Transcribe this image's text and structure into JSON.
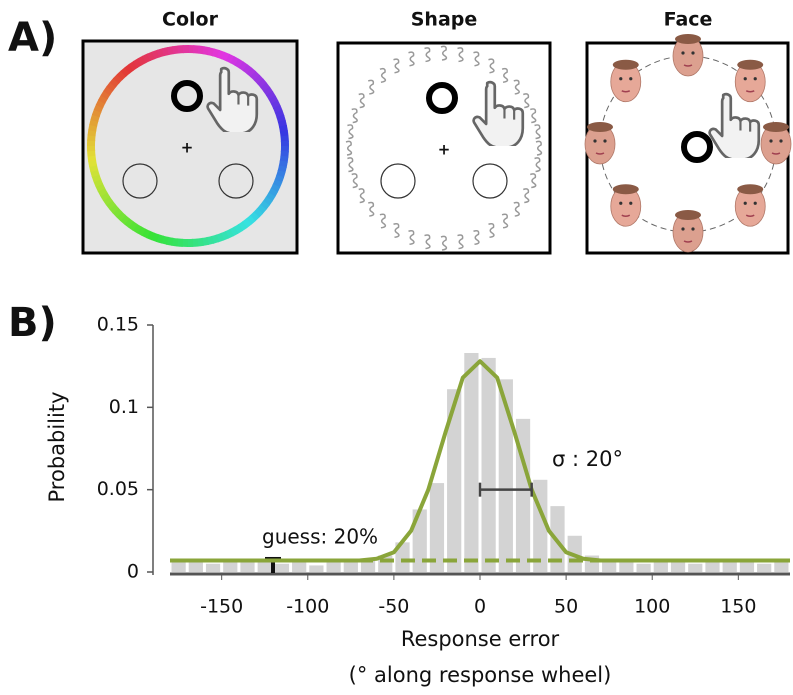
{
  "panel_a": {
    "label": "A)",
    "panels": [
      {
        "title": "Color",
        "center": "+"
      },
      {
        "title": "Shape",
        "center": "+"
      },
      {
        "title": "Face"
      }
    ]
  },
  "chart_data": {
    "type": "histogram",
    "label": "B)",
    "ylabel": "Probability",
    "xlabel": "Response error",
    "xlabel2": "(° along response wheel)",
    "bins": [
      -180,
      -170,
      -160,
      -150,
      -140,
      -130,
      -120,
      -110,
      -100,
      -90,
      -80,
      -70,
      -60,
      -50,
      -40,
      -30,
      -20,
      -10,
      0,
      10,
      20,
      30,
      40,
      50,
      60,
      70,
      80,
      90,
      100,
      110,
      120,
      130,
      140,
      150,
      160,
      170,
      180
    ],
    "values": [
      0.006,
      0.007,
      0.005,
      0.006,
      0.006,
      0.007,
      0.005,
      0.006,
      0.004,
      0.006,
      0.007,
      0.008,
      0.01,
      0.018,
      0.038,
      0.054,
      0.111,
      0.133,
      0.13,
      0.117,
      0.093,
      0.056,
      0.04,
      0.022,
      0.01,
      0.007,
      0.006,
      0.005,
      0.007,
      0.006,
      0.005,
      0.006,
      0.007,
      0.006,
      0.005,
      0.006
    ],
    "bar_color": "#d3d3d3",
    "fit": {
      "color": "#8aa53a",
      "x": [
        -180,
        -170,
        -160,
        -150,
        -140,
        -130,
        -120,
        -110,
        -100,
        -90,
        -80,
        -70,
        -60,
        -50,
        -40,
        -30,
        -20,
        -10,
        0,
        10,
        20,
        30,
        40,
        50,
        60,
        70,
        80,
        90,
        100,
        110,
        120,
        130,
        140,
        150,
        160,
        170,
        180
      ],
      "values": [
        0.007,
        0.007,
        0.007,
        0.007,
        0.007,
        0.007,
        0.007,
        0.007,
        0.007,
        0.007,
        0.007,
        0.007,
        0.008,
        0.012,
        0.025,
        0.05,
        0.085,
        0.118,
        0.128,
        0.118,
        0.085,
        0.05,
        0.025,
        0.012,
        0.008,
        0.007,
        0.007,
        0.007,
        0.007,
        0.007,
        0.007,
        0.007,
        0.007,
        0.007,
        0.007,
        0.007,
        0.007
      ]
    },
    "guess_level": 0.007,
    "sigma_bar": {
      "x": [
        0,
        30
      ],
      "y": 0.05
    },
    "annotations": {
      "sigma": "σ : 20°",
      "guess": "guess: 20%"
    },
    "xlim": [
      -180,
      180
    ],
    "ylim": [
      0,
      0.15
    ],
    "xticks": [
      -150,
      -100,
      -50,
      0,
      50,
      100,
      150
    ],
    "yticks": [
      0,
      0.05,
      0.1,
      0.15
    ]
  }
}
